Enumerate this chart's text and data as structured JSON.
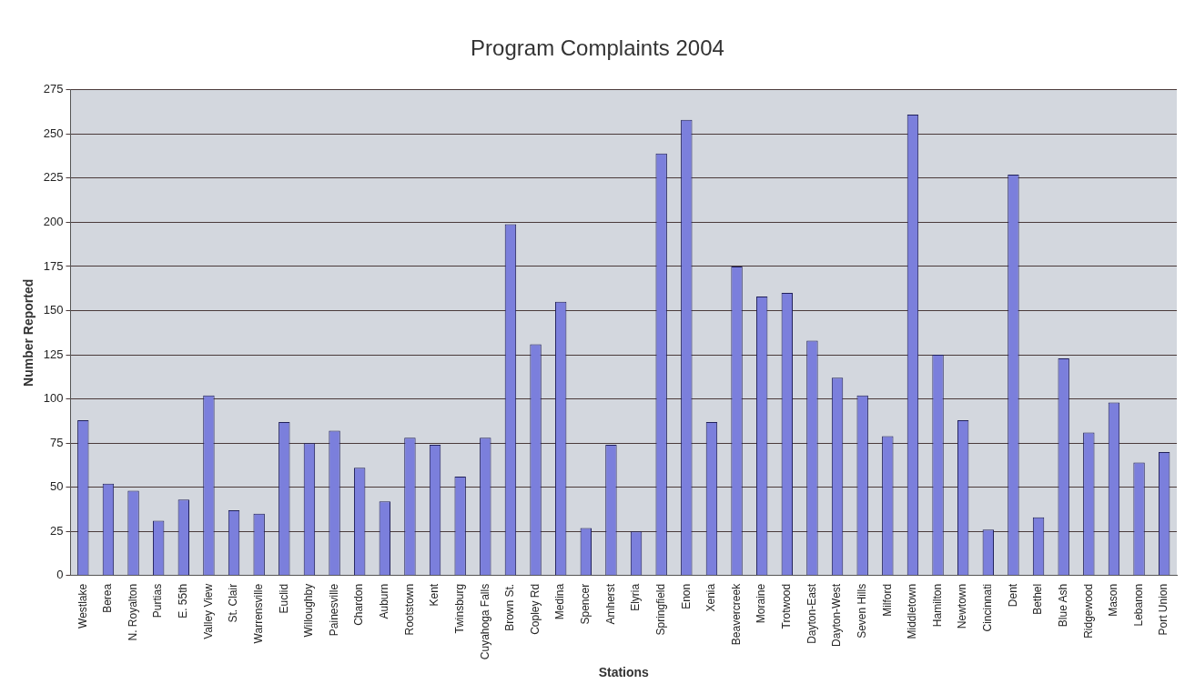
{
  "chart_data": {
    "type": "bar",
    "title": "Program Complaints 2004",
    "xlabel": "Stations",
    "ylabel": "Number Reported",
    "categories": [
      "Westlake",
      "Berea",
      "N. Royalton",
      "Purtias",
      "E. 55th",
      "Valley View",
      "St. Clair",
      "Warrensville",
      "Euclid",
      "Willoughby",
      "Painesville",
      "Chardon",
      "Auburn",
      "Rootstown",
      "Kent",
      "Twinsburg",
      "Cuyahoga Falls",
      "Brown St.",
      "Copley Rd",
      "Medina",
      "Spencer",
      "Amherst",
      "Elyria",
      "Springfield",
      "Enon",
      "Xenia",
      "Beavercreek",
      "Moraine",
      "Trotwood",
      "Dayton-East",
      "Dayton-West",
      "Seven Hills",
      "Milford",
      "Middletown",
      "Hamilton",
      "Newtown",
      "Cincinnati",
      "Dent",
      "Bethel",
      "Blue Ash",
      "Ridgewood",
      "Mason",
      "Lebanon",
      "Port Union"
    ],
    "values": [
      88,
      52,
      48,
      31,
      43,
      102,
      37,
      35,
      87,
      75,
      82,
      61,
      42,
      78,
      74,
      56,
      78,
      199,
      131,
      155,
      27,
      74,
      25,
      239,
      258,
      87,
      175,
      158,
      160,
      133,
      112,
      102,
      79,
      261,
      125,
      88,
      26,
      227,
      33,
      123,
      81,
      98,
      64,
      70
    ],
    "color": "#7b7fdc",
    "ylim": [
      0,
      275
    ],
    "yticks": [
      0,
      25,
      50,
      75,
      100,
      125,
      150,
      175,
      200,
      225,
      250,
      275
    ],
    "grid": "y"
  }
}
